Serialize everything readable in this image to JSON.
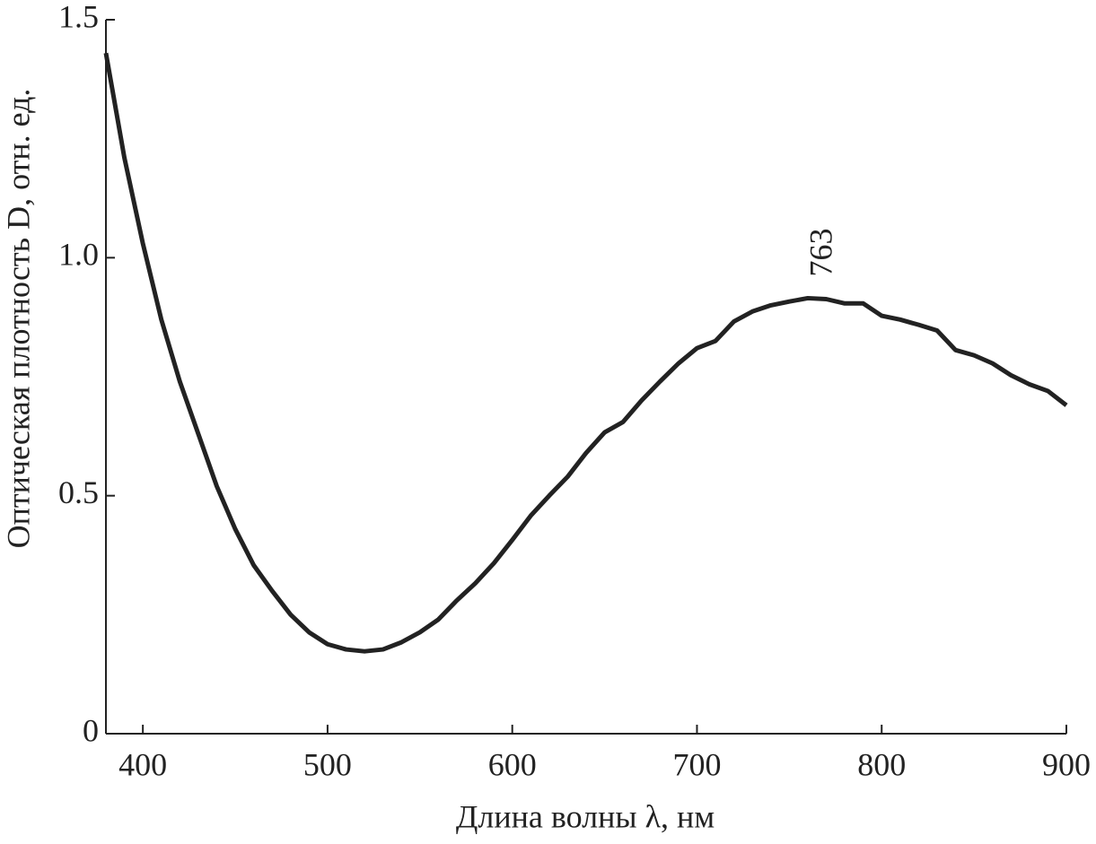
{
  "chart_data": {
    "type": "line",
    "xlabel": "Длина волны λ, нм",
    "ylabel": "Оптическая плотность D, отн. ед.",
    "annotation": "763",
    "annotation_x": 763,
    "annotation_y": 0.96,
    "x": [
      380,
      390,
      400,
      410,
      420,
      430,
      440,
      450,
      460,
      470,
      480,
      490,
      500,
      510,
      520,
      530,
      540,
      550,
      560,
      570,
      580,
      590,
      600,
      610,
      620,
      630,
      640,
      650,
      660,
      670,
      680,
      690,
      700,
      710,
      720,
      730,
      740,
      750,
      760,
      770,
      780,
      790,
      800,
      810,
      820,
      830,
      840,
      850,
      860,
      870,
      880,
      890,
      900
    ],
    "series": [
      {
        "name": "D",
        "color": "#222222",
        "values": [
          1.43,
          1.21,
          1.03,
          0.87,
          0.74,
          0.63,
          0.52,
          0.43,
          0.354,
          0.3,
          0.25,
          0.213,
          0.188,
          0.177,
          0.173,
          0.177,
          0.192,
          0.213,
          0.24,
          0.28,
          0.316,
          0.358,
          0.407,
          0.458,
          0.5,
          0.54,
          0.59,
          0.633,
          0.655,
          0.7,
          0.74,
          0.778,
          0.81,
          0.825,
          0.866,
          0.887,
          0.9,
          0.908,
          0.915,
          0.913,
          0.904,
          0.904,
          0.878,
          0.87,
          0.859,
          0.847,
          0.806,
          0.795,
          0.778,
          0.753,
          0.734,
          0.72,
          0.69
        ]
      }
    ],
    "xlim": [
      380,
      900
    ],
    "xticks": [
      400,
      500,
      600,
      700,
      800,
      900
    ],
    "ylim": [
      0,
      1.5
    ],
    "yticks": [
      0,
      0.5,
      {
        "value": 1,
        "label": "1.0"
      },
      1.5
    ]
  }
}
